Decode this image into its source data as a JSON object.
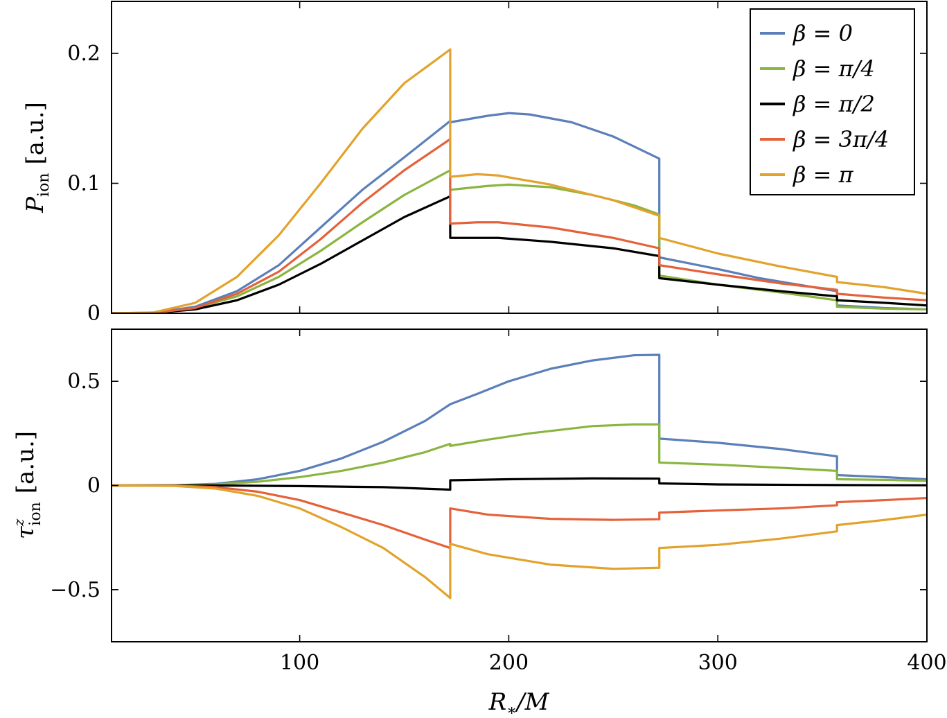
{
  "chart_data": [
    {
      "type": "line",
      "panel": "top",
      "ylabel": "P_ion [a.u.]",
      "ylabel_main": "P",
      "ylabel_sub": "ion",
      "ylabel_unit": "[a.u.]",
      "xlim": [
        10,
        400
      ],
      "ylim": [
        0,
        0.24
      ],
      "x_ticks": [
        100,
        200,
        300,
        400
      ],
      "y_ticks": [
        0,
        0.1,
        0.2
      ],
      "y_tick_labels": [
        "0",
        "0.1",
        "0.2"
      ],
      "show_x_tick_labels": false,
      "legend_position": "top-right",
      "series": [
        {
          "name": "β = 0",
          "color": "#5b7fb9",
          "points": [
            [
              10,
              0
            ],
            [
              30,
              0.0004
            ],
            [
              50,
              0.005
            ],
            [
              70,
              0.017
            ],
            [
              90,
              0.037
            ],
            [
              110,
              0.066
            ],
            [
              130,
              0.095
            ],
            [
              150,
              0.12
            ],
            [
              172,
              0.148
            ],
            [
              172,
              0.147
            ],
            [
              190,
              0.152
            ],
            [
              200,
              0.154
            ],
            [
              210,
              0.153
            ],
            [
              230,
              0.147
            ],
            [
              250,
              0.136
            ],
            [
              272,
              0.119
            ],
            [
              272,
              0.043
            ],
            [
              300,
              0.034
            ],
            [
              320,
              0.027
            ],
            [
              357,
              0.017
            ],
            [
              357,
              0.006
            ],
            [
              380,
              0.004
            ],
            [
              400,
              0.003
            ]
          ]
        },
        {
          "name": "β = π/4",
          "color": "#8ab53f",
          "points": [
            [
              10,
              0
            ],
            [
              30,
              0.0003
            ],
            [
              50,
              0.004
            ],
            [
              70,
              0.013
            ],
            [
              90,
              0.028
            ],
            [
              110,
              0.048
            ],
            [
              130,
              0.07
            ],
            [
              150,
              0.091
            ],
            [
              172,
              0.11
            ],
            [
              172,
              0.095
            ],
            [
              190,
              0.098
            ],
            [
              200,
              0.099
            ],
            [
              220,
              0.097
            ],
            [
              240,
              0.091
            ],
            [
              260,
              0.083
            ],
            [
              272,
              0.076
            ],
            [
              272,
              0.029
            ],
            [
              300,
              0.022
            ],
            [
              330,
              0.016
            ],
            [
              357,
              0.01
            ],
            [
              357,
              0.005
            ],
            [
              380,
              0.0035
            ],
            [
              400,
              0.003
            ]
          ]
        },
        {
          "name": "β = π/2",
          "color": "#000000",
          "points": [
            [
              10,
              0
            ],
            [
              30,
              0.0002
            ],
            [
              50,
              0.003
            ],
            [
              70,
              0.01
            ],
            [
              90,
              0.022
            ],
            [
              110,
              0.038
            ],
            [
              130,
              0.056
            ],
            [
              150,
              0.074
            ],
            [
              172,
              0.09
            ],
            [
              172,
              0.058
            ],
            [
              180,
              0.058
            ],
            [
              195,
              0.058
            ],
            [
              220,
              0.055
            ],
            [
              250,
              0.05
            ],
            [
              272,
              0.044
            ],
            [
              272,
              0.027
            ],
            [
              300,
              0.022
            ],
            [
              330,
              0.017
            ],
            [
              357,
              0.013
            ],
            [
              357,
              0.01
            ],
            [
              380,
              0.008
            ],
            [
              400,
              0.006
            ]
          ]
        },
        {
          "name": "β = 3π/4",
          "color": "#e4613a",
          "points": [
            [
              10,
              0
            ],
            [
              30,
              0.0003
            ],
            [
              50,
              0.004
            ],
            [
              70,
              0.015
            ],
            [
              90,
              0.032
            ],
            [
              110,
              0.057
            ],
            [
              130,
              0.085
            ],
            [
              150,
              0.11
            ],
            [
              172,
              0.134
            ],
            [
              172,
              0.069
            ],
            [
              185,
              0.07
            ],
            [
              195,
              0.07
            ],
            [
              220,
              0.066
            ],
            [
              250,
              0.058
            ],
            [
              272,
              0.05
            ],
            [
              272,
              0.037
            ],
            [
              300,
              0.03
            ],
            [
              330,
              0.023
            ],
            [
              357,
              0.018
            ],
            [
              357,
              0.015
            ],
            [
              380,
              0.012
            ],
            [
              400,
              0.01
            ]
          ]
        },
        {
          "name": "β = π",
          "color": "#e2a22c",
          "points": [
            [
              10,
              0
            ],
            [
              30,
              0.0006
            ],
            [
              50,
              0.008
            ],
            [
              70,
              0.028
            ],
            [
              90,
              0.06
            ],
            [
              110,
              0.1
            ],
            [
              130,
              0.142
            ],
            [
              150,
              0.177
            ],
            [
              172,
              0.203
            ],
            [
              172,
              0.105
            ],
            [
              185,
              0.107
            ],
            [
              195,
              0.106
            ],
            [
              220,
              0.099
            ],
            [
              250,
              0.087
            ],
            [
              272,
              0.075
            ],
            [
              272,
              0.058
            ],
            [
              300,
              0.046
            ],
            [
              330,
              0.036
            ],
            [
              357,
              0.028
            ],
            [
              357,
              0.024
            ],
            [
              380,
              0.02
            ],
            [
              400,
              0.015
            ]
          ]
        }
      ]
    },
    {
      "type": "line",
      "panel": "bottom",
      "xlabel": "R_*/M",
      "xlabel_main": "R",
      "xlabel_sub": "∗",
      "xlabel_tail": "/M",
      "ylabel": "τ^z_ion [a.u.]",
      "ylabel_main": "τ",
      "ylabel_sup": "z",
      "ylabel_sub": "ion",
      "ylabel_unit": "[a.u.]",
      "xlim": [
        10,
        400
      ],
      "ylim": [
        -0.75,
        0.75
      ],
      "x_ticks": [
        100,
        200,
        300,
        400
      ],
      "x_tick_labels": [
        "100",
        "200",
        "300",
        "400"
      ],
      "y_ticks": [
        -0.5,
        0,
        0.5
      ],
      "y_tick_labels": [
        "−0.5",
        "0",
        "0.5"
      ],
      "series": [
        {
          "name": "β = 0",
          "color": "#5b7fb9",
          "points": [
            [
              10,
              0
            ],
            [
              40,
              0.001
            ],
            [
              60,
              0.008
            ],
            [
              80,
              0.03
            ],
            [
              100,
              0.07
            ],
            [
              120,
              0.13
            ],
            [
              140,
              0.21
            ],
            [
              160,
              0.31
            ],
            [
              172,
              0.39
            ],
            [
              172,
              0.39
            ],
            [
              185,
              0.44
            ],
            [
              200,
              0.5
            ],
            [
              220,
              0.56
            ],
            [
              240,
              0.6
            ],
            [
              260,
              0.625
            ],
            [
              272,
              0.627
            ],
            [
              272,
              0.225
            ],
            [
              300,
              0.205
            ],
            [
              330,
              0.175
            ],
            [
              357,
              0.14
            ],
            [
              357,
              0.05
            ],
            [
              380,
              0.04
            ],
            [
              400,
              0.03
            ]
          ]
        },
        {
          "name": "β = π/4",
          "color": "#8ab53f",
          "points": [
            [
              10,
              0
            ],
            [
              40,
              0.001
            ],
            [
              60,
              0.005
            ],
            [
              80,
              0.018
            ],
            [
              100,
              0.04
            ],
            [
              120,
              0.07
            ],
            [
              140,
              0.11
            ],
            [
              160,
              0.16
            ],
            [
              172,
              0.2
            ],
            [
              172,
              0.19
            ],
            [
              190,
              0.22
            ],
            [
              210,
              0.25
            ],
            [
              240,
              0.285
            ],
            [
              260,
              0.293
            ],
            [
              272,
              0.293
            ],
            [
              272,
              0.11
            ],
            [
              300,
              0.1
            ],
            [
              330,
              0.085
            ],
            [
              357,
              0.07
            ],
            [
              357,
              0.03
            ],
            [
              380,
              0.027
            ],
            [
              400,
              0.022
            ]
          ]
        },
        {
          "name": "β = π/2",
          "color": "#000000",
          "points": [
            [
              10,
              0
            ],
            [
              60,
              0
            ],
            [
              100,
              -0.003
            ],
            [
              140,
              -0.008
            ],
            [
              172,
              -0.02
            ],
            [
              172,
              0.025
            ],
            [
              200,
              0.03
            ],
            [
              240,
              0.034
            ],
            [
              272,
              0.033
            ],
            [
              272,
              0.01
            ],
            [
              300,
              0.005
            ],
            [
              357,
              0.002
            ],
            [
              400,
              0.001
            ]
          ]
        },
        {
          "name": "β = 3π/4",
          "color": "#e4613a",
          "points": [
            [
              10,
              0
            ],
            [
              40,
              -0.001
            ],
            [
              60,
              -0.008
            ],
            [
              80,
              -0.03
            ],
            [
              100,
              -0.07
            ],
            [
              120,
              -0.13
            ],
            [
              140,
              -0.19
            ],
            [
              160,
              -0.26
            ],
            [
              172,
              -0.3
            ],
            [
              172,
              -0.11
            ],
            [
              190,
              -0.14
            ],
            [
              220,
              -0.16
            ],
            [
              250,
              -0.165
            ],
            [
              272,
              -0.162
            ],
            [
              272,
              -0.13
            ],
            [
              300,
              -0.12
            ],
            [
              330,
              -0.11
            ],
            [
              357,
              -0.095
            ],
            [
              357,
              -0.08
            ],
            [
              380,
              -0.07
            ],
            [
              400,
              -0.06
            ]
          ]
        },
        {
          "name": "β = π",
          "color": "#e2a22c",
          "points": [
            [
              10,
              0
            ],
            [
              40,
              -0.002
            ],
            [
              60,
              -0.015
            ],
            [
              80,
              -0.05
            ],
            [
              100,
              -0.11
            ],
            [
              120,
              -0.2
            ],
            [
              140,
              -0.3
            ],
            [
              160,
              -0.44
            ],
            [
              172,
              -0.54
            ],
            [
              172,
              -0.28
            ],
            [
              190,
              -0.33
            ],
            [
              220,
              -0.38
            ],
            [
              250,
              -0.4
            ],
            [
              272,
              -0.395
            ],
            [
              272,
              -0.3
            ],
            [
              300,
              -0.285
            ],
            [
              330,
              -0.255
            ],
            [
              357,
              -0.22
            ],
            [
              357,
              -0.19
            ],
            [
              380,
              -0.165
            ],
            [
              400,
              -0.14
            ]
          ]
        }
      ]
    }
  ]
}
